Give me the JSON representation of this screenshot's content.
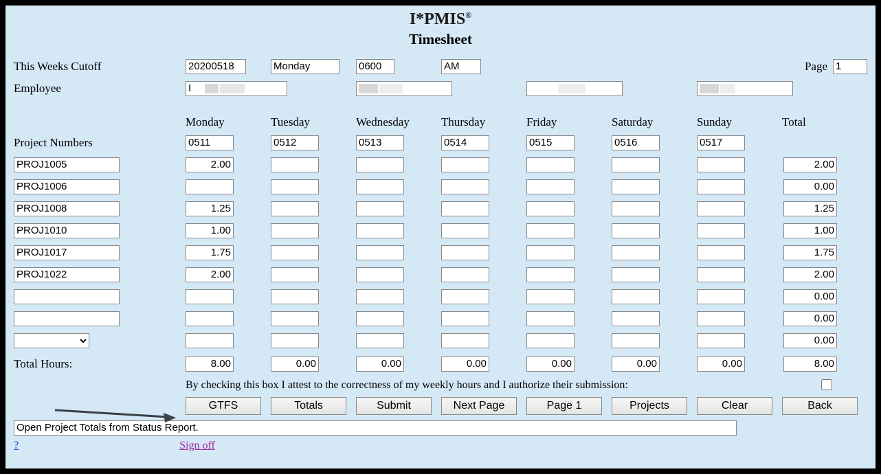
{
  "app": {
    "title": "I*PMIS",
    "reg": "®",
    "subtitle": "Timesheet"
  },
  "cutoff": {
    "label": "This Weeks Cutoff",
    "date": "20200518",
    "day": "Monday",
    "time": "0600",
    "ampm": "AM",
    "page_label": "Page",
    "page_num": "1"
  },
  "employee": {
    "label": "Employee",
    "fields": [
      "I",
      "",
      "",
      ""
    ]
  },
  "days": [
    "Monday",
    "Tuesday",
    "Wednesday",
    "Thursday",
    "Friday",
    "Saturday",
    "Sunday"
  ],
  "total_header": "Total",
  "project_numbers_label": "Project Numbers",
  "project_numbers": [
    "0511",
    "0512",
    "0513",
    "0514",
    "0515",
    "0516",
    "0517"
  ],
  "rows": [
    {
      "proj": "PROJ1005",
      "hours": [
        "2.00",
        "",
        "",
        "",
        "",
        "",
        ""
      ],
      "total": "2.00"
    },
    {
      "proj": "PROJ1006",
      "hours": [
        "",
        "",
        "",
        "",
        "",
        "",
        ""
      ],
      "total": "0.00"
    },
    {
      "proj": "PROJ1008",
      "hours": [
        "1.25",
        "",
        "",
        "",
        "",
        "",
        ""
      ],
      "total": "1.25"
    },
    {
      "proj": "PROJ1010",
      "hours": [
        "1.00",
        "",
        "",
        "",
        "",
        "",
        ""
      ],
      "total": "1.00"
    },
    {
      "proj": "PROJ1017",
      "hours": [
        "1.75",
        "",
        "",
        "",
        "",
        "",
        ""
      ],
      "total": "1.75"
    },
    {
      "proj": "PROJ1022",
      "hours": [
        "2.00",
        "",
        "",
        "",
        "",
        "",
        ""
      ],
      "total": "2.00"
    },
    {
      "proj": "",
      "hours": [
        "",
        "",
        "",
        "",
        "",
        "",
        ""
      ],
      "total": "0.00"
    },
    {
      "proj": "",
      "hours": [
        "",
        "",
        "",
        "",
        "",
        "",
        ""
      ],
      "total": "0.00"
    },
    {
      "proj": "__select__",
      "hours": [
        "",
        "",
        "",
        "",
        "",
        "",
        ""
      ],
      "total": "0.00"
    }
  ],
  "totals_row": {
    "label": "Total Hours:",
    "hours": [
      "8.00",
      "0.00",
      "0.00",
      "0.00",
      "0.00",
      "0.00",
      "0.00"
    ],
    "grand": "8.00"
  },
  "attest": "By checking this box I attest to the correctness of my weekly hours and I authorize their submission:",
  "buttons": [
    "GTFS",
    "Totals",
    "Submit",
    "Next Page",
    "Page 1",
    "Projects",
    "Clear",
    "Back"
  ],
  "status": "Open Project Totals from Status Report.",
  "links": {
    "help": "?",
    "signoff": "Sign off"
  },
  "colors": {
    "page_bg": "#d5e8f6",
    "border": "#888888",
    "link_blue": "#1a4ad1",
    "link_purple": "#9a2a9a",
    "arrow": "#3a4147"
  }
}
